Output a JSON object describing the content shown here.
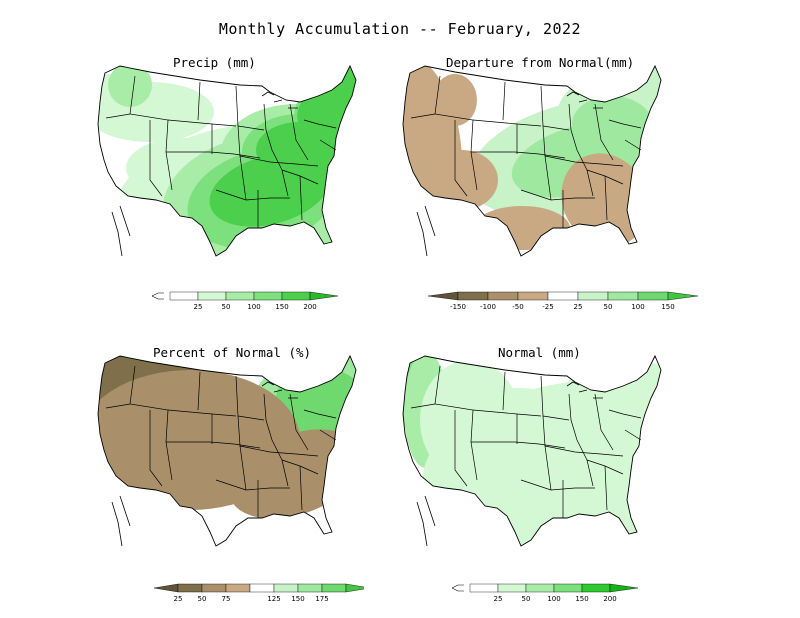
{
  "main_title": "Monthly Accumulation -- February, 2022",
  "panels": [
    {
      "title": "Precip (mm)",
      "legend": {
        "has_lower_open": true,
        "colors": [
          "#ffffff",
          "#d4f7d4",
          "#a8eca8",
          "#7ce07c",
          "#4ccf4c",
          "#2bb82b"
        ],
        "ticks": [
          "25",
          "50",
          "100",
          "150",
          "200"
        ]
      },
      "patches": [
        {
          "color": "#4ccf4c",
          "shapes": [
            [
              270,
              190,
              62,
              34,
              -15
            ],
            [
              300,
              150,
              44,
              28,
              0
            ],
            [
              325,
              115,
              28,
              26,
              -20
            ],
            [
              345,
              92,
              14,
              24,
              10
            ]
          ]
        },
        {
          "color": "#7ce07c",
          "shapes": [
            [
              262,
              198,
              76,
              48,
              -15
            ],
            [
              300,
              152,
              58,
              38,
              0
            ],
            [
              330,
              115,
              36,
              34,
              -20
            ],
            [
              350,
              93,
              18,
              30,
              10
            ],
            [
              246,
              226,
              34,
              24,
              0
            ]
          ]
        },
        {
          "color": "#a8eca8",
          "shapes": [
            [
              258,
              200,
              96,
              64,
              -10
            ],
            [
              296,
              156,
              76,
              52,
              0
            ],
            [
              226,
              218,
              62,
              40,
              -20
            ],
            [
              130,
              85,
              22,
              22,
              0
            ],
            [
              326,
              225,
              24,
              22,
              0
            ]
          ]
        },
        {
          "color": "#d4f7d4",
          "shapes": [
            [
              240,
              208,
              130,
              82,
              -10
            ],
            [
              182,
              168,
              56,
              30,
              0
            ],
            [
              150,
              112,
              64,
              30,
              0
            ],
            [
              110,
              96,
              28,
              22,
              0
            ],
            [
              214,
              246,
              38,
              26,
              0
            ]
          ]
        }
      ]
    },
    {
      "title": "Departure from Normal(mm)",
      "legend": {
        "has_lower_open": false,
        "colors": [
          "#5f5439",
          "#7f6f4a",
          "#a9906b",
          "#c8a983",
          "#ffffff",
          "#c8f2c8",
          "#9fe89f",
          "#6fd86f",
          "#43c443"
        ],
        "ticks": [
          "-150",
          "-100",
          "-50",
          "-25",
          "25",
          "50",
          "100",
          "150"
        ]
      },
      "patches": [
        {
          "color": "#c8a983",
          "shapes": [
            [
              418,
              140,
              42,
              86,
              -10
            ],
            [
              462,
              180,
              36,
              30,
              0
            ],
            [
              455,
              100,
              22,
              26,
              0
            ],
            [
              522,
              228,
              48,
              22,
              0
            ],
            [
              605,
              200,
              42,
              48,
              -30
            ]
          ]
        },
        {
          "color": "#a9906b",
          "shapes": [
            [
              416,
              128,
              28,
              60,
              -10
            ],
            [
              618,
              210,
              26,
              30,
              -30
            ]
          ]
        },
        {
          "color": "#7f6f4a",
          "shapes": [
            [
              410,
              120,
              16,
              34,
              -10
            ]
          ]
        },
        {
          "color": "#9fe89f",
          "shapes": [
            [
              580,
              160,
              70,
              34,
              -15
            ],
            [
              612,
              124,
              40,
              28,
              0
            ]
          ]
        },
        {
          "color": "#c8f2c8",
          "shapes": [
            [
              572,
              158,
              106,
              54,
              -15
            ],
            [
              624,
              112,
              66,
              40,
              0
            ],
            [
              650,
              88,
              18,
              26,
              10
            ]
          ]
        }
      ]
    },
    {
      "title": "Percent of Normal (%)",
      "legend": {
        "has_lower_open": false,
        "colors": [
          "#5f5439",
          "#7f6f4a",
          "#a9906b",
          "#c8a983",
          "#ffffff",
          "#c8f2c8",
          "#9fe89f",
          "#6fd86f",
          "#43c443"
        ],
        "ticks": [
          "25",
          "50",
          "75",
          "125",
          "150",
          "175"
        ]
      },
      "patches": [
        {
          "color": "#a9906b",
          "shapes": [
            [
              190,
              440,
              110,
              70,
              0
            ],
            [
              296,
              474,
              70,
              40,
              -20
            ]
          ]
        },
        {
          "color": "#7f6f4a",
          "shapes": [
            [
              138,
              420,
              78,
              96,
              -5
            ],
            [
              232,
              446,
              40,
              34,
              0
            ]
          ]
        },
        {
          "color": "#6fd86f",
          "shapes": [
            [
              292,
              436,
              70,
              42,
              -15
            ],
            [
              320,
              398,
              44,
              30,
              0
            ]
          ]
        },
        {
          "color": "#9fe89f",
          "shapes": [
            [
              284,
              440,
              96,
              58,
              -15
            ],
            [
              318,
              400,
              64,
              40,
              0
            ],
            [
              198,
              400,
              26,
              14,
              0
            ],
            [
              172,
              456,
              20,
              12,
              0
            ],
            [
              348,
              372,
              16,
              28,
              10
            ]
          ]
        }
      ]
    },
    {
      "title": "Normal (mm)",
      "legend": {
        "has_lower_open": true,
        "colors": [
          "#ffffff",
          "#d4f7d4",
          "#a8eca8",
          "#7ce07c",
          "#2ec92e",
          "#14b414"
        ],
        "ticks": [
          "25",
          "50",
          "100",
          "150",
          "200"
        ]
      },
      "patches": [
        {
          "color": "#d4f7d4",
          "shapes": [
            [
              592,
              470,
              170,
              90,
              -5
            ],
            [
              628,
              404,
              70,
              44,
              0
            ],
            [
              470,
              420,
              50,
              60,
              0
            ],
            [
              520,
              410,
              44,
              22,
              0
            ]
          ]
        },
        {
          "color": "#a8eca8",
          "shapes": [
            [
              595,
              478,
              120,
              64,
              -10
            ],
            [
              426,
              410,
              22,
              58,
              0
            ]
          ]
        },
        {
          "color": "#7ce07c",
          "shapes": [
            [
              592,
              490,
              76,
              36,
              -10
            ],
            [
              416,
              400,
              14,
              44,
              0
            ]
          ]
        },
        {
          "color": "#2ec92e",
          "shapes": [
            [
              578,
              506,
              32,
              16,
              0
            ],
            [
              420,
              392,
              8,
              22,
              0
            ]
          ]
        }
      ]
    }
  ]
}
